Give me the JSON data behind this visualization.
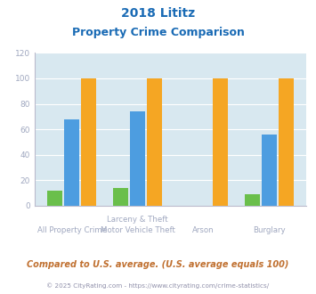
{
  "title_line1": "2018 Lititz",
  "title_line2": "Property Crime Comparison",
  "cat_labels_top": [
    "",
    "Larceny & Theft",
    "",
    ""
  ],
  "cat_labels_bottom": [
    "All Property Crime",
    "Motor Vehicle Theft",
    "Arson",
    "Burglary"
  ],
  "lititz": [
    12,
    14,
    0,
    9
  ],
  "pennsylvania": [
    68,
    74,
    0,
    56
  ],
  "national": [
    100,
    100,
    100,
    100
  ],
  "lititz_color": "#6abf4b",
  "pennsylvania_color": "#4d9de0",
  "national_color": "#f5a623",
  "bg_color": "#d8e8f0",
  "ylim": [
    0,
    120
  ],
  "yticks": [
    0,
    20,
    40,
    60,
    80,
    100,
    120
  ],
  "tick_color": "#a0a8c0",
  "title_color": "#1a6bb5",
  "legend_text_color": "#444455",
  "footer_text": "Compared to U.S. average. (U.S. average equals 100)",
  "copyright_text": "© 2025 CityRating.com - https://www.cityrating.com/crime-statistics/",
  "footer_color": "#c07030",
  "copyright_color": "#9090aa"
}
